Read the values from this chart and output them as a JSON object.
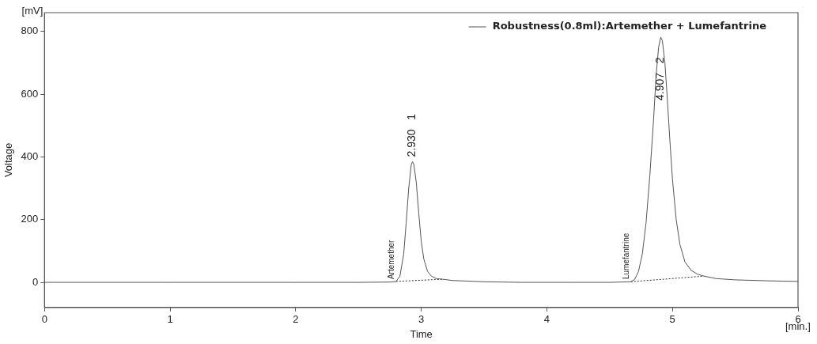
{
  "chart_data": {
    "type": "line",
    "xlabel": "Time",
    "ylabel": "Voltage",
    "xlim": [
      0,
      6
    ],
    "xticks": [
      0,
      1,
      2,
      3,
      4,
      5,
      6
    ],
    "ylim": [
      -80,
      860
    ],
    "yticks": [
      0,
      200,
      400,
      600,
      800
    ],
    "grid": false,
    "legend": "top right",
    "marker": "none",
    "series": [
      {
        "name": "Robustness(0.8ml):Artemether + Lumefantrine",
        "color": "#555555",
        "line_style": "solid",
        "x": [
          0,
          1,
          2,
          2.5,
          2.75,
          2.8,
          2.83,
          2.86,
          2.88,
          2.9,
          2.92,
          2.93,
          2.94,
          2.96,
          2.98,
          3.0,
          3.02,
          3.05,
          3.08,
          3.12,
          3.17,
          3.25,
          3.5,
          3.8,
          4.2,
          4.5,
          4.67,
          4.7,
          4.73,
          4.76,
          4.79,
          4.82,
          4.85,
          4.87,
          4.89,
          4.907,
          4.92,
          4.94,
          4.96,
          4.98,
          5.0,
          5.03,
          5.06,
          5.1,
          5.15,
          5.2,
          5.25,
          5.35,
          5.5,
          5.75,
          6.0
        ],
        "values": [
          0,
          0,
          0,
          0,
          1,
          3,
          20,
          90,
          190,
          300,
          375,
          385,
          378,
          320,
          220,
          130,
          75,
          35,
          20,
          12,
          10,
          6,
          2,
          0,
          0,
          0,
          2,
          10,
          35,
          90,
          190,
          340,
          520,
          660,
          750,
          782,
          770,
          700,
          580,
          450,
          330,
          200,
          120,
          65,
          38,
          26,
          20,
          12,
          8,
          5,
          3
        ]
      },
      {
        "color": "#333333",
        "line_style": "dotted",
        "x": [
          2.8,
          3.17
        ],
        "values": [
          3,
          10
        ]
      },
      {
        "color": "#333333",
        "line_style": "dotted",
        "x": [
          4.67,
          5.25
        ],
        "values": [
          2,
          20
        ]
      }
    ],
    "annotations": [
      {
        "text": "2.930   1",
        "x": 2.93,
        "y": 385
      },
      {
        "text": "4.907   2",
        "x": 4.907,
        "y": 782
      },
      {
        "text": "Artemether",
        "x": 2.8,
        "y": 0
      },
      {
        "text": "Lumefantrine",
        "x": 4.67,
        "y": 0
      },
      "[mV]",
      "[min.]"
    ]
  }
}
